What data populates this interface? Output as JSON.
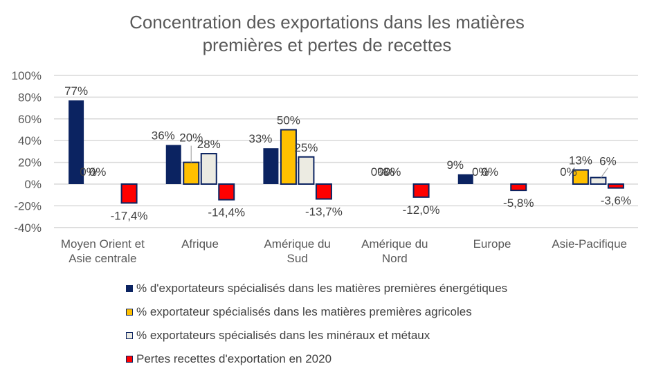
{
  "chart_data": {
    "type": "bar",
    "title_lines": [
      "Concentration des exportations dans les matières",
      "premières et pertes de recettes"
    ],
    "categories": [
      [
        "Moyen Orient et",
        "Asie centrale"
      ],
      [
        "Afrique"
      ],
      [
        "Amérique du",
        "Sud"
      ],
      [
        "Amérique du",
        "Nord"
      ],
      [
        "Europe"
      ],
      [
        "Asie-Pacifique"
      ]
    ],
    "series": [
      {
        "name": "% d'exportateurs spécialisés dans les matières premières énergétiques",
        "color": "#0b2361",
        "border": "#0b2361",
        "values": [
          77,
          36,
          33,
          0,
          9,
          0
        ],
        "labels": [
          "77%",
          "36%",
          "33%",
          "0%",
          "9%",
          "0%"
        ]
      },
      {
        "name": "% exportateur spécialisés dans les matières premières agricoles",
        "color": "#ffc000",
        "border": "#0b2361",
        "values": [
          0,
          20,
          50,
          0,
          0,
          13
        ],
        "labels": [
          "0%",
          "20%",
          "50%",
          "0%",
          "0%",
          "13%"
        ]
      },
      {
        "name": "% exportateurs spécialisés dans les minéraux et métaux",
        "color": "#ecebe2",
        "border": "#0b2361",
        "values": [
          0,
          28,
          25,
          0,
          0,
          6
        ],
        "labels": [
          "0%",
          "28%",
          "25%",
          "0%",
          "0%",
          "6%"
        ]
      },
      {
        "name": "Pertes recettes d'exportation en 2020",
        "color": "#ff0000",
        "border": "#0b2361",
        "values": [
          -17.4,
          -14.4,
          -13.7,
          -12.0,
          -5.8,
          -3.6
        ],
        "labels": [
          "-17,4%",
          "-14,4%",
          "-13,7%",
          "-12,0%",
          "-5,8%",
          "-3,6%"
        ]
      }
    ],
    "y_ticks": [
      100,
      80,
      60,
      40,
      20,
      0,
      -20,
      -40
    ],
    "y_tick_labels": [
      "100%",
      "80%",
      "60%",
      "40%",
      "20%",
      "0%",
      "-20%",
      "-40%"
    ],
    "ylim": [
      -40,
      100
    ],
    "xlabel": "",
    "ylabel": "",
    "grid": true,
    "legend_position": "bottom"
  },
  "colors": {
    "text": "#595959",
    "grid": "#d9d9d9",
    "label": "#404040"
  }
}
